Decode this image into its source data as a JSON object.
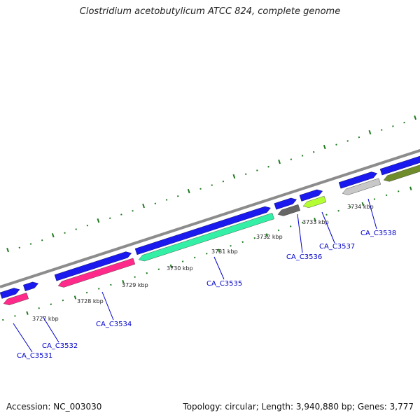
{
  "title": "Clostridium acetobutylicum ATCC 824, complete genome",
  "footer": {
    "accession": "Accession: NC_003030",
    "summary": "Topology: circular; Length: 3,940,880 bp; Genes: 3,777"
  },
  "colors": {
    "forward_blue": "#1a1aee",
    "backbone_gray": "#8c8c8c",
    "tick_green": "#1f7a1f",
    "label_blue": "#0000cc",
    "pink": "#ff2a8a",
    "mint": "#33f0a6",
    "dark_gray": "#666666",
    "lime": "#b3ff33",
    "light_gray": "#c8c8c8",
    "olive": "#6f8c2a"
  },
  "kbp_labels": [
    "3727 kbp",
    "3728 kbp",
    "3729 kbp",
    "3730 kbp",
    "3731 kbp",
    "3732 kbp",
    "3733 kbp",
    "3734 kbp"
  ],
  "genes": [
    {
      "name": "CA_C3531",
      "strand": "reverse",
      "color": "pink"
    },
    {
      "name": "CA_C3532",
      "strand": "forward",
      "color": "forward_blue"
    },
    {
      "name": "CA_C3534",
      "strand": "reverse",
      "color": "pink"
    },
    {
      "name": "CA_C3535",
      "strand": "reverse",
      "color": "mint"
    },
    {
      "name": "CA_C3536",
      "strand": "reverse",
      "color": "dark_gray"
    },
    {
      "name": "CA_C3537",
      "strand": "reverse",
      "color": "lime"
    },
    {
      "name": "CA_C3538",
      "strand": "reverse",
      "color": "light_gray"
    }
  ]
}
